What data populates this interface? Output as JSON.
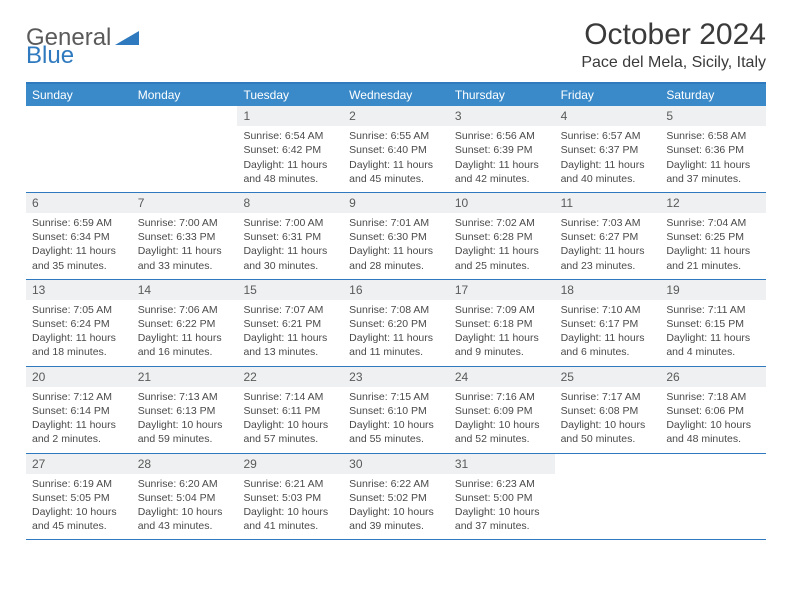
{
  "logo": {
    "text1": "General",
    "text2": "Blue"
  },
  "title": "October 2024",
  "location": "Pace del Mela, Sicily, Italy",
  "colors": {
    "header_bg": "#3a8ac9",
    "border": "#2f7abf",
    "daynum_bg": "#eef0f1",
    "text": "#4a4a4a"
  },
  "weekdays": [
    "Sunday",
    "Monday",
    "Tuesday",
    "Wednesday",
    "Thursday",
    "Friday",
    "Saturday"
  ],
  "weeks": [
    [
      null,
      null,
      {
        "n": "1",
        "sr": "6:54 AM",
        "ss": "6:42 PM",
        "dl": "11 hours and 48 minutes."
      },
      {
        "n": "2",
        "sr": "6:55 AM",
        "ss": "6:40 PM",
        "dl": "11 hours and 45 minutes."
      },
      {
        "n": "3",
        "sr": "6:56 AM",
        "ss": "6:39 PM",
        "dl": "11 hours and 42 minutes."
      },
      {
        "n": "4",
        "sr": "6:57 AM",
        "ss": "6:37 PM",
        "dl": "11 hours and 40 minutes."
      },
      {
        "n": "5",
        "sr": "6:58 AM",
        "ss": "6:36 PM",
        "dl": "11 hours and 37 minutes."
      }
    ],
    [
      {
        "n": "6",
        "sr": "6:59 AM",
        "ss": "6:34 PM",
        "dl": "11 hours and 35 minutes."
      },
      {
        "n": "7",
        "sr": "7:00 AM",
        "ss": "6:33 PM",
        "dl": "11 hours and 33 minutes."
      },
      {
        "n": "8",
        "sr": "7:00 AM",
        "ss": "6:31 PM",
        "dl": "11 hours and 30 minutes."
      },
      {
        "n": "9",
        "sr": "7:01 AM",
        "ss": "6:30 PM",
        "dl": "11 hours and 28 minutes."
      },
      {
        "n": "10",
        "sr": "7:02 AM",
        "ss": "6:28 PM",
        "dl": "11 hours and 25 minutes."
      },
      {
        "n": "11",
        "sr": "7:03 AM",
        "ss": "6:27 PM",
        "dl": "11 hours and 23 minutes."
      },
      {
        "n": "12",
        "sr": "7:04 AM",
        "ss": "6:25 PM",
        "dl": "11 hours and 21 minutes."
      }
    ],
    [
      {
        "n": "13",
        "sr": "7:05 AM",
        "ss": "6:24 PM",
        "dl": "11 hours and 18 minutes."
      },
      {
        "n": "14",
        "sr": "7:06 AM",
        "ss": "6:22 PM",
        "dl": "11 hours and 16 minutes."
      },
      {
        "n": "15",
        "sr": "7:07 AM",
        "ss": "6:21 PM",
        "dl": "11 hours and 13 minutes."
      },
      {
        "n": "16",
        "sr": "7:08 AM",
        "ss": "6:20 PM",
        "dl": "11 hours and 11 minutes."
      },
      {
        "n": "17",
        "sr": "7:09 AM",
        "ss": "6:18 PM",
        "dl": "11 hours and 9 minutes."
      },
      {
        "n": "18",
        "sr": "7:10 AM",
        "ss": "6:17 PM",
        "dl": "11 hours and 6 minutes."
      },
      {
        "n": "19",
        "sr": "7:11 AM",
        "ss": "6:15 PM",
        "dl": "11 hours and 4 minutes."
      }
    ],
    [
      {
        "n": "20",
        "sr": "7:12 AM",
        "ss": "6:14 PM",
        "dl": "11 hours and 2 minutes."
      },
      {
        "n": "21",
        "sr": "7:13 AM",
        "ss": "6:13 PM",
        "dl": "10 hours and 59 minutes."
      },
      {
        "n": "22",
        "sr": "7:14 AM",
        "ss": "6:11 PM",
        "dl": "10 hours and 57 minutes."
      },
      {
        "n": "23",
        "sr": "7:15 AM",
        "ss": "6:10 PM",
        "dl": "10 hours and 55 minutes."
      },
      {
        "n": "24",
        "sr": "7:16 AM",
        "ss": "6:09 PM",
        "dl": "10 hours and 52 minutes."
      },
      {
        "n": "25",
        "sr": "7:17 AM",
        "ss": "6:08 PM",
        "dl": "10 hours and 50 minutes."
      },
      {
        "n": "26",
        "sr": "7:18 AM",
        "ss": "6:06 PM",
        "dl": "10 hours and 48 minutes."
      }
    ],
    [
      {
        "n": "27",
        "sr": "6:19 AM",
        "ss": "5:05 PM",
        "dl": "10 hours and 45 minutes."
      },
      {
        "n": "28",
        "sr": "6:20 AM",
        "ss": "5:04 PM",
        "dl": "10 hours and 43 minutes."
      },
      {
        "n": "29",
        "sr": "6:21 AM",
        "ss": "5:03 PM",
        "dl": "10 hours and 41 minutes."
      },
      {
        "n": "30",
        "sr": "6:22 AM",
        "ss": "5:02 PM",
        "dl": "10 hours and 39 minutes."
      },
      {
        "n": "31",
        "sr": "6:23 AM",
        "ss": "5:00 PM",
        "dl": "10 hours and 37 minutes."
      },
      null,
      null
    ]
  ],
  "labels": {
    "sunrise": "Sunrise:",
    "sunset": "Sunset:",
    "daylight": "Daylight:"
  }
}
